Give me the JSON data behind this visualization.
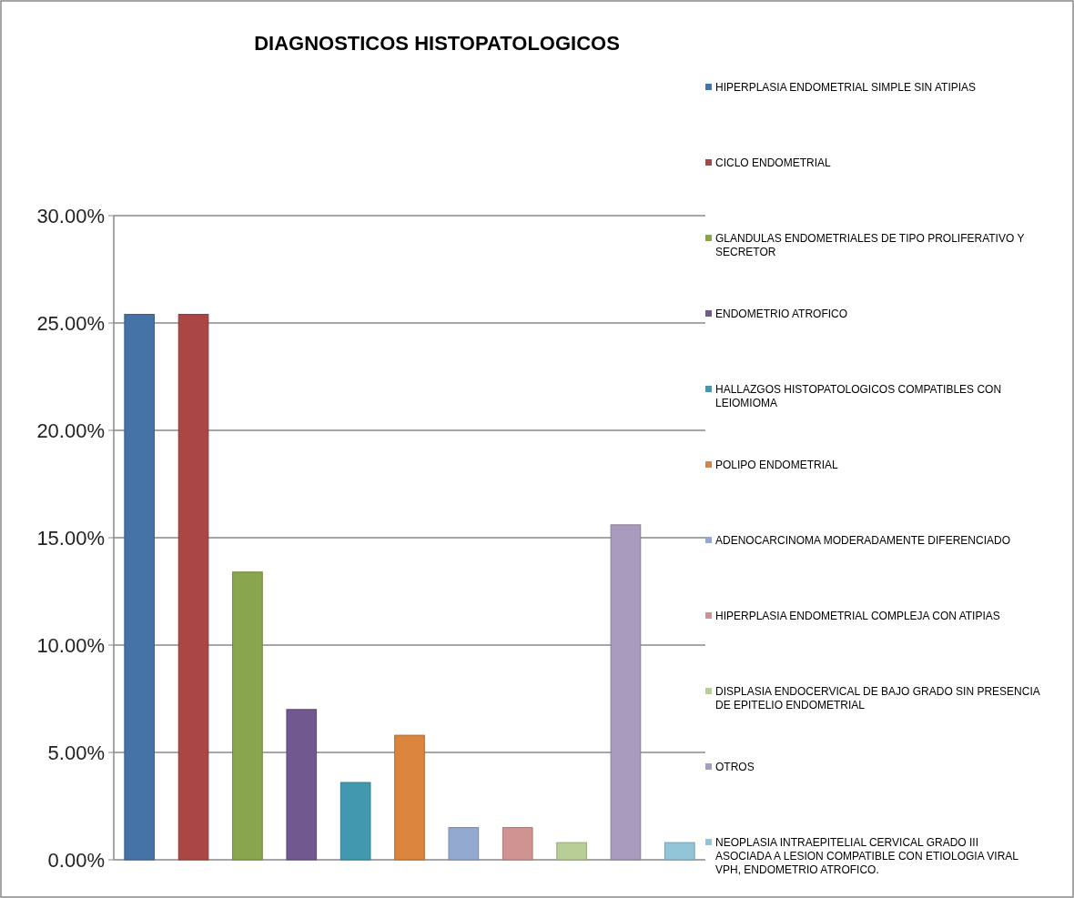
{
  "chart_data": {
    "type": "bar",
    "title": "DIAGNOSTICOS HISTOPATOLOGICOS",
    "categories": [
      null,
      null,
      null,
      null,
      null,
      null,
      null,
      null,
      null,
      null,
      null
    ],
    "series": [
      {
        "name": "HIPERPLASIA ENDOMETRIAL SIMPLE SIN ATIPIAS",
        "color": "#4572a7",
        "values": [
          25.4,
          null,
          null,
          null,
          null,
          null,
          null,
          null,
          null,
          null,
          null
        ]
      },
      {
        "name": "CICLO ENDOMETRIAL",
        "color": "#aa4643",
        "values": [
          null,
          25.4,
          null,
          null,
          null,
          null,
          null,
          null,
          null,
          null,
          null
        ]
      },
      {
        "name": "GLANDULAS ENDOMETRIALES DE TIPO PROLIFERATIVO Y SECRETOR",
        "color": "#89a54e",
        "values": [
          null,
          null,
          13.4,
          null,
          null,
          null,
          null,
          null,
          null,
          null,
          null
        ]
      },
      {
        "name": "ENDOMETRIO ATROFICO",
        "color": "#71588f",
        "values": [
          null,
          null,
          null,
          7.0,
          null,
          null,
          null,
          null,
          null,
          null,
          null
        ]
      },
      {
        "name": "HALLAZGOS HISTOPATOLOGICOS COMPATIBLES CON LEIOMIOMA",
        "color": "#4198af",
        "values": [
          null,
          null,
          null,
          null,
          3.6,
          null,
          null,
          null,
          null,
          null,
          null
        ]
      },
      {
        "name": "POLIPO ENDOMETRIAL",
        "color": "#db843d",
        "values": [
          null,
          null,
          null,
          null,
          null,
          5.8,
          null,
          null,
          null,
          null,
          null
        ]
      },
      {
        "name": "ADENOCARCINOMA MODERADAMENTE DIFERENCIADO",
        "color": "#93a9cf",
        "values": [
          null,
          null,
          null,
          null,
          null,
          null,
          1.5,
          null,
          null,
          null,
          null
        ]
      },
      {
        "name": "HIPERPLASIA ENDOMETRIAL COMPLEJA CON ATIPIAS",
        "color": "#d19392",
        "values": [
          null,
          null,
          null,
          null,
          null,
          null,
          null,
          1.5,
          null,
          null,
          null
        ]
      },
      {
        "name": "DISPLASIA ENDOCERVICAL DE BAJO GRADO SIN PRESENCIA DE EPITELIO ENDOMETRIAL",
        "color": "#b9cd96",
        "values": [
          null,
          null,
          null,
          null,
          null,
          null,
          null,
          null,
          0.8,
          null,
          null
        ]
      },
      {
        "name": "OTROS",
        "color": "#a99bbd",
        "values": [
          null,
          null,
          null,
          null,
          null,
          null,
          null,
          null,
          null,
          15.6,
          null
        ]
      },
      {
        "name": "NEOPLASIA INTRAEPITELIAL CERVICAL GRADO III ASOCIADA A LESION COMPATIBLE CON ETIOLOGIA VIRAL VPH, ENDOMETRIO ATROFICO.",
        "color": "#92c5d8",
        "values": [
          null,
          null,
          null,
          null,
          null,
          null,
          null,
          null,
          null,
          null,
          0.8
        ]
      }
    ],
    "ylim": [
      0,
      30
    ],
    "yticks": [
      {
        "value": 0,
        "label": "0.00%"
      },
      {
        "value": 5,
        "label": "5.00%"
      },
      {
        "value": 10,
        "label": "10.00%"
      },
      {
        "value": 15,
        "label": "15.00%"
      },
      {
        "value": 20,
        "label": "20.00%"
      },
      {
        "value": 25,
        "label": "25.00%"
      },
      {
        "value": 30,
        "label": "30.00%"
      }
    ],
    "grid": "y",
    "legend": "right",
    "tick_labels": "y"
  }
}
